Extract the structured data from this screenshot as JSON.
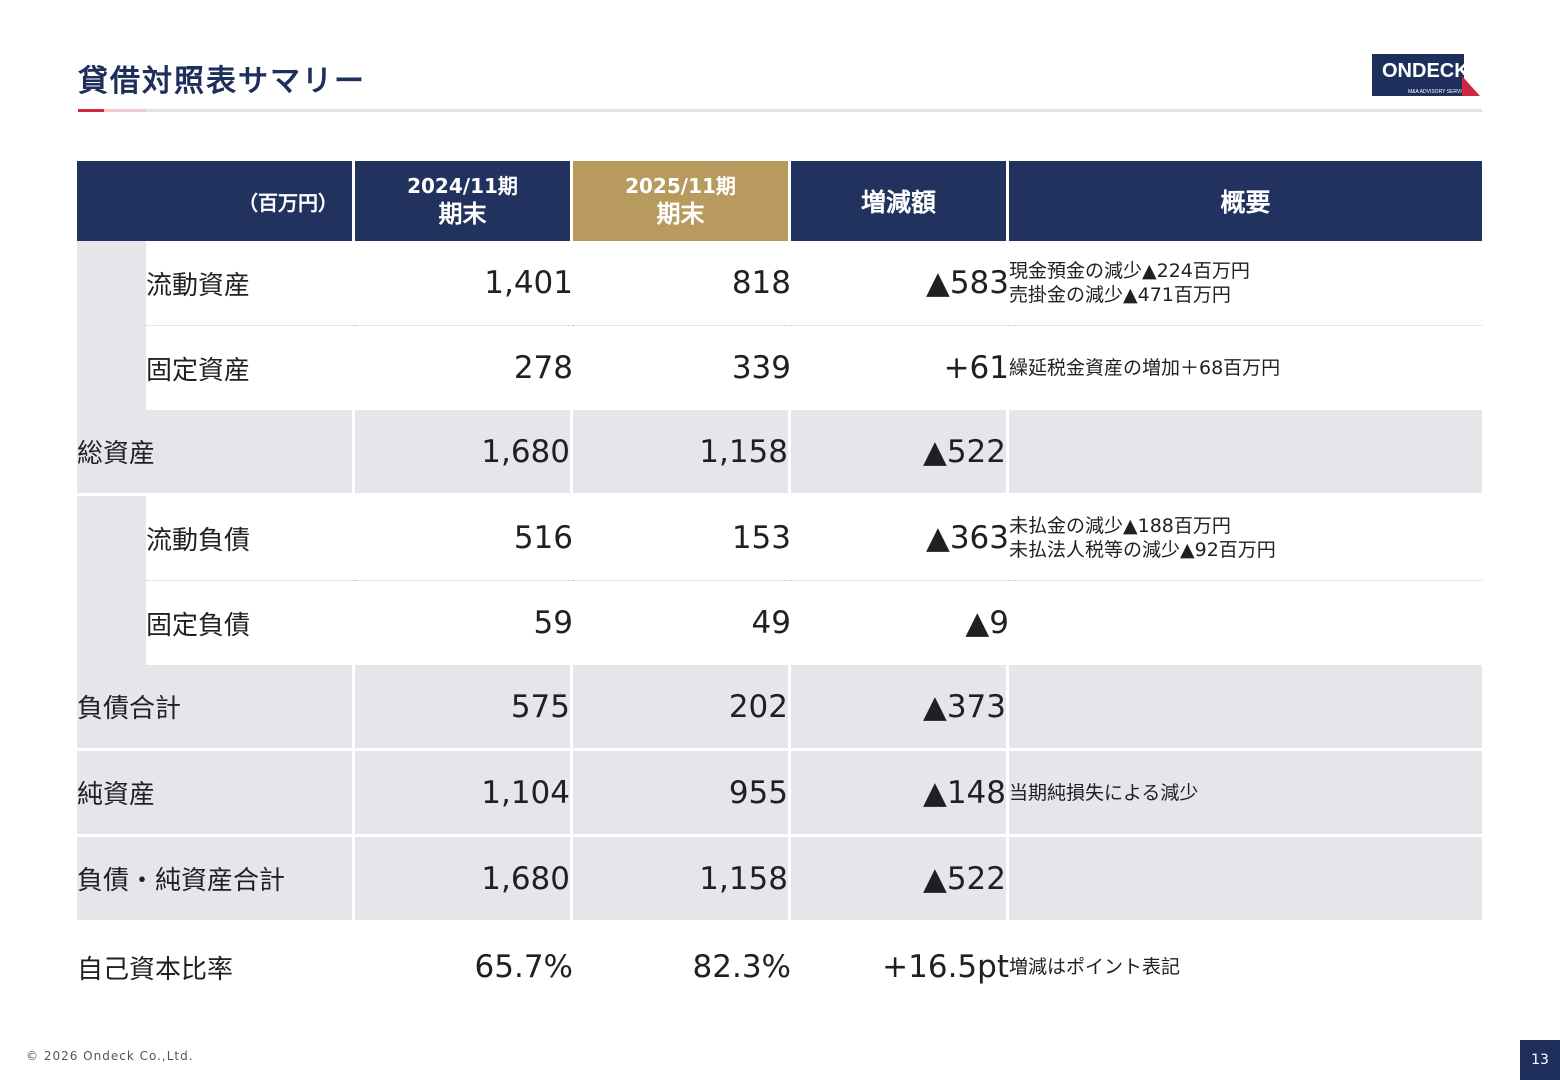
{
  "title": "貸借対照表サマリー",
  "logo": {
    "word": "ONDECK",
    "sub": "M&A ADVISORY SERVICE"
  },
  "colors": {
    "navy": "#22325f",
    "gold": "#b89a5e",
    "accent": "#d0263e",
    "row_gray": "#e6e6ea"
  },
  "table": {
    "unit": "（百万円）",
    "col_2024_l1": "2024/11期",
    "col_2024_l2": "期末",
    "col_2025_l1": "2025/11期",
    "col_2025_l2": "期末",
    "col_change": "増減額",
    "col_summary": "概要",
    "rows": [
      {
        "label": "流動資産",
        "v2024": "1,401",
        "v2025": "818",
        "change": "▲583",
        "note1": "現金預金の減少▲224百万円",
        "note2": "売掛金の減少▲471百万円"
      },
      {
        "label": "固定資産",
        "v2024": "278",
        "v2025": "339",
        "change": "+61",
        "note1": "繰延税金資産の増加＋68百万円"
      },
      {
        "label": "総資産",
        "v2024": "1,680",
        "v2025": "1,158",
        "change": "▲522"
      },
      {
        "label": "流動負債",
        "v2024": "516",
        "v2025": "153",
        "change": "▲363",
        "note1": "未払金の減少▲188百万円",
        "note2": "未払法人税等の減少▲92百万円"
      },
      {
        "label": "固定負債",
        "v2024": "59",
        "v2025": "49",
        "change": "▲9"
      },
      {
        "label": "負債合計",
        "v2024": "575",
        "v2025": "202",
        "change": "▲373"
      },
      {
        "label": "純資産",
        "v2024": "1,104",
        "v2025": "955",
        "change": "▲148",
        "note1": "当期純損失による減少"
      },
      {
        "label": "負債・純資産合計",
        "v2024": "1,680",
        "v2025": "1,158",
        "change": "▲522"
      },
      {
        "label": "自己資本比率",
        "v2024": "65.7%",
        "v2025": "82.3%",
        "change": "+16.5pt",
        "note1": "増減はポイント表記"
      }
    ]
  },
  "footer": {
    "copyright": "© 2026 Ondeck Co.,Ltd.",
    "page": "13"
  }
}
